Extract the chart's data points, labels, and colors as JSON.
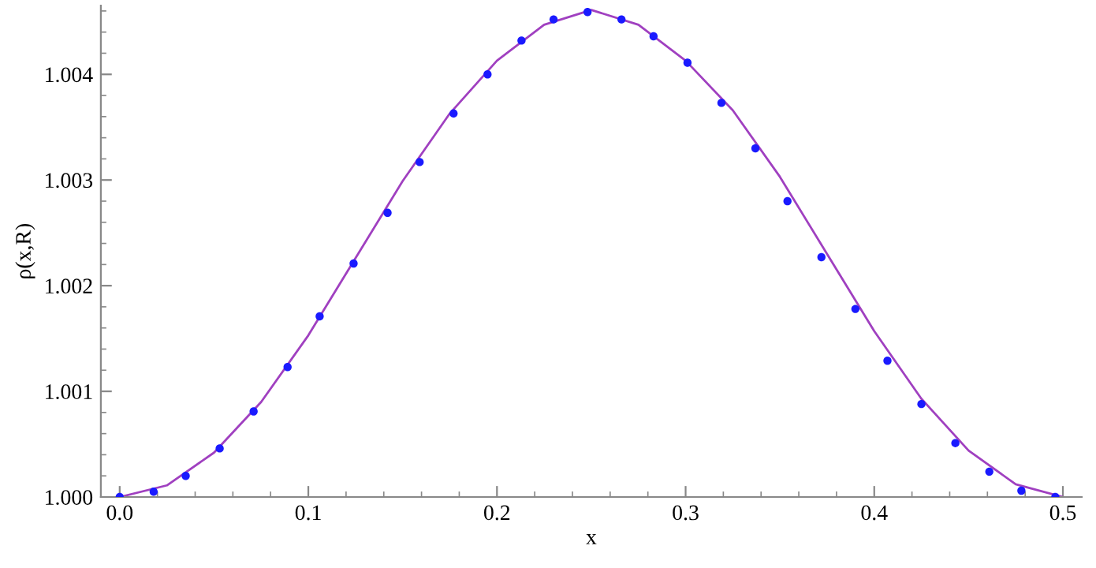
{
  "chart_data": {
    "type": "line",
    "xlabel": "x",
    "ylabel": "ρ(x,R)",
    "xlim": [
      -0.01,
      0.51
    ],
    "ylim": [
      1.0,
      1.00465
    ],
    "xticks": [
      {
        "value": 0.0,
        "label": "0.0"
      },
      0.1,
      0.2,
      0.3,
      0.4,
      0.5
    ],
    "yticks": [
      {
        "value": 1.0,
        "label": "1.000"
      },
      {
        "value": 1.001,
        "label": "1.001"
      },
      {
        "value": 1.002,
        "label": "1.002"
      },
      {
        "value": 1.003,
        "label": "1.003"
      },
      {
        "value": 1.004,
        "label": "1.004"
      }
    ],
    "grid": false,
    "legend": false,
    "series": [
      {
        "type": "scatter",
        "marker": "circle",
        "color": "#1a1aff",
        "x": [
          0.0,
          0.018,
          0.035,
          0.053,
          0.071,
          0.089,
          0.106,
          0.124,
          0.142,
          0.159,
          0.177,
          0.195,
          0.213,
          0.23,
          0.248,
          0.266,
          0.283,
          0.301,
          0.319,
          0.337,
          0.354,
          0.372,
          0.39,
          0.407,
          0.425,
          0.443,
          0.461,
          0.478,
          0.496
        ],
        "values": [
          1.0,
          1.00005,
          1.0002,
          1.00046,
          1.00081,
          1.00123,
          1.00171,
          1.00221,
          1.00269,
          1.00317,
          1.00363,
          1.004,
          1.00432,
          1.00452,
          1.00459,
          1.00452,
          1.00436,
          1.00411,
          1.00373,
          1.0033,
          1.0028,
          1.00227,
          1.00178,
          1.00129,
          1.00088,
          1.00051,
          1.00024,
          1.00006,
          1.0
        ]
      },
      {
        "color": "#a040c0",
        "x": [
          0.0,
          0.025,
          0.05,
          0.075,
          0.1,
          0.125,
          0.15,
          0.175,
          0.2,
          0.225,
          0.25,
          0.275,
          0.3,
          0.325,
          0.35,
          0.375,
          0.4,
          0.425,
          0.45,
          0.475,
          0.5
        ],
        "values": [
          1.0,
          1.00011,
          1.00042,
          1.0009,
          1.00153,
          1.00226,
          1.00299,
          1.00363,
          1.00413,
          1.00447,
          1.00461,
          1.00447,
          1.00413,
          1.00366,
          1.00303,
          1.0023,
          1.00157,
          1.00093,
          1.00044,
          1.00012,
          1.0
        ]
      }
    ]
  }
}
